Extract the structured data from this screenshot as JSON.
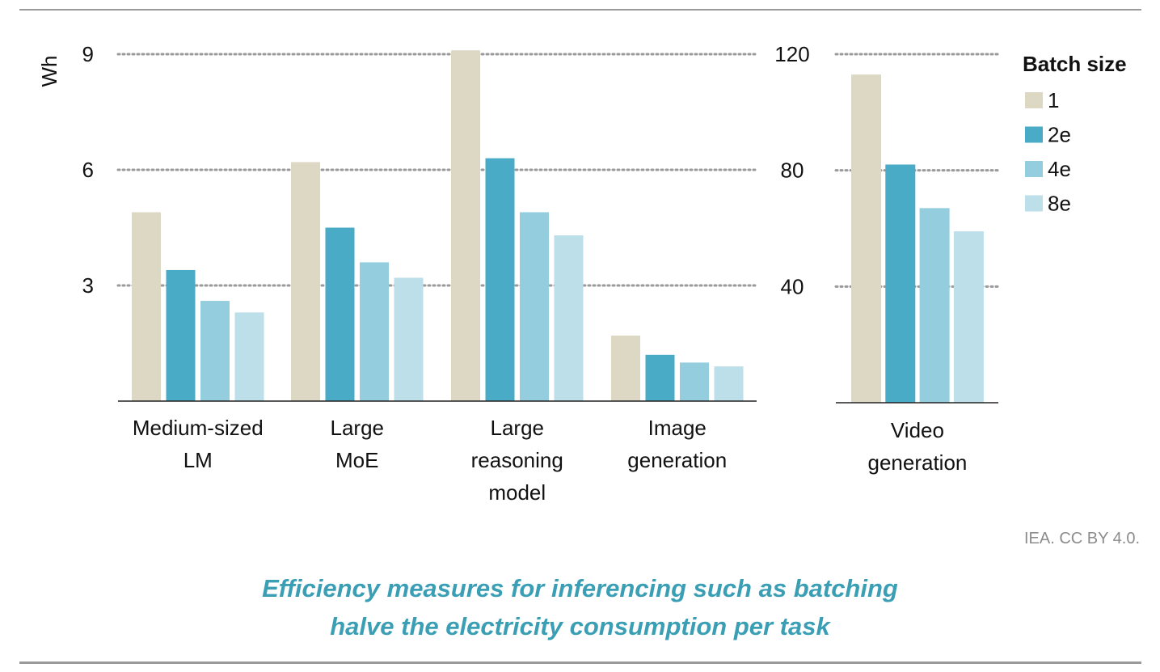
{
  "chart_data": {
    "type": "bar",
    "ylabel": "Wh",
    "legend": {
      "title": "Batch size",
      "placement": "right",
      "entries": [
        {
          "name": "1",
          "color": "#ddd8c4"
        },
        {
          "name": "2e",
          "color": "#4aabc6"
        },
        {
          "name": "4e",
          "color": "#94cddd"
        },
        {
          "name": "8e",
          "color": "#bddfe9"
        }
      ]
    },
    "grid": "dotted horizontal",
    "panels": [
      {
        "categories": [
          "Medium-sized LM",
          "Large MoE",
          "Large reasoning model",
          "Image generation"
        ],
        "category_lines": [
          [
            "Medium-sized",
            "LM"
          ],
          [
            "Large",
            "MoE"
          ],
          [
            "Large",
            "reasoning",
            "model"
          ],
          [
            "Image",
            "generation"
          ]
        ],
        "ylim": [
          0,
          9
        ],
        "yticks": [
          3,
          6,
          9
        ],
        "series": [
          {
            "name": "1",
            "values": [
              4.9,
              6.2,
              9.1,
              1.7
            ]
          },
          {
            "name": "2e",
            "values": [
              3.4,
              4.5,
              6.3,
              1.2
            ]
          },
          {
            "name": "4e",
            "values": [
              2.6,
              3.6,
              4.9,
              1.0
            ]
          },
          {
            "name": "8e",
            "values": [
              2.3,
              3.2,
              4.3,
              0.9
            ]
          }
        ]
      },
      {
        "categories": [
          "Video generation"
        ],
        "category_lines": [
          [
            "Video",
            "generation"
          ]
        ],
        "ylim": [
          0,
          120
        ],
        "yticks": [
          40,
          80,
          120
        ],
        "series": [
          {
            "name": "1",
            "values": [
              113
            ]
          },
          {
            "name": "2e",
            "values": [
              82
            ]
          },
          {
            "name": "4e",
            "values": [
              67
            ]
          },
          {
            "name": "8e",
            "values": [
              59
            ]
          }
        ]
      }
    ]
  },
  "source": "IEA. CC BY 4.0.",
  "caption": {
    "line1": "Efficiency measures for inferencing such as batching",
    "line2": "halve the electricity consumption per task"
  }
}
